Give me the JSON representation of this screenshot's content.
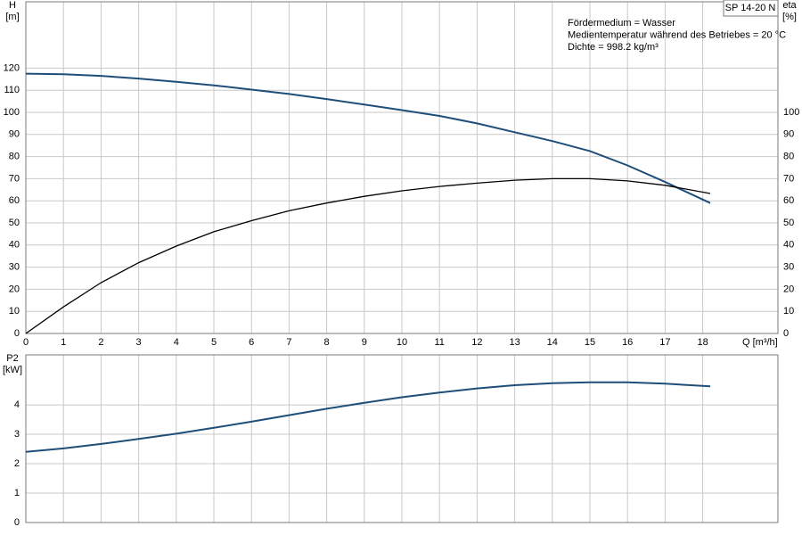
{
  "chart_data": [
    {
      "type": "line",
      "title": "SP 14-20 N",
      "annotations": [
        "Fördermedium = Wasser",
        "Medientemperatur während des Betriebes = 20 °C",
        "Dichte = 998.2 kg/m³"
      ],
      "y_label": "H",
      "y_unit": "[m]",
      "y2_label": "eta",
      "y2_unit": "[%]",
      "x_label": "Q [m³/h]",
      "x": [
        0,
        1,
        2,
        3,
        4,
        5,
        6,
        7,
        8,
        9,
        10,
        11,
        12,
        13,
        14,
        15,
        16,
        17,
        18.2
      ],
      "series": [
        {
          "color": "#1f4e79",
          "axis": "y",
          "values": [
            117.5,
            117.2,
            116.5,
            115.3,
            113.8,
            112.2,
            110.3,
            108.3,
            106,
            103.5,
            101,
            98.4,
            95,
            91,
            87,
            82.5,
            76,
            68.5,
            59
          ]
        },
        {
          "color": "#000000",
          "axis": "y2",
          "values": [
            0,
            12,
            23,
            32,
            39.5,
            46,
            51,
            55.5,
            59,
            62,
            64.5,
            66.5,
            68,
            69.3,
            70,
            70,
            69,
            67,
            63.3
          ]
        }
      ],
      "xlim": [
        0,
        20
      ],
      "xticks": [
        0,
        1,
        2,
        3,
        4,
        5,
        6,
        7,
        8,
        9,
        10,
        11,
        12,
        13,
        14,
        15,
        16,
        17,
        18
      ],
      "ylim": [
        0,
        150
      ],
      "yticks": [
        0,
        10,
        20,
        30,
        40,
        50,
        60,
        70,
        80,
        90,
        100,
        110,
        120
      ],
      "y2lim": [
        0,
        150
      ],
      "y2ticks": [
        0,
        10,
        20,
        30,
        40,
        50,
        60,
        70,
        80,
        90,
        100
      ],
      "grid": true
    },
    {
      "type": "line",
      "y_label": "P2",
      "y_unit": "[kW]",
      "x": [
        0,
        1,
        2,
        3,
        4,
        5,
        6,
        7,
        8,
        9,
        10,
        11,
        12,
        13,
        14,
        15,
        16,
        17,
        18.2
      ],
      "series": [
        {
          "color": "#1f4e79",
          "axis": "y",
          "values": [
            2.4,
            2.52,
            2.67,
            2.84,
            3.02,
            3.22,
            3.43,
            3.65,
            3.87,
            4.07,
            4.26,
            4.42,
            4.56,
            4.67,
            4.74,
            4.77,
            4.77,
            4.72,
            4.63
          ]
        }
      ],
      "xlim": [
        0,
        20
      ],
      "ylim": [
        0,
        5.7
      ],
      "yticks": [
        0,
        1,
        2,
        3,
        4
      ],
      "grid": true
    }
  ]
}
